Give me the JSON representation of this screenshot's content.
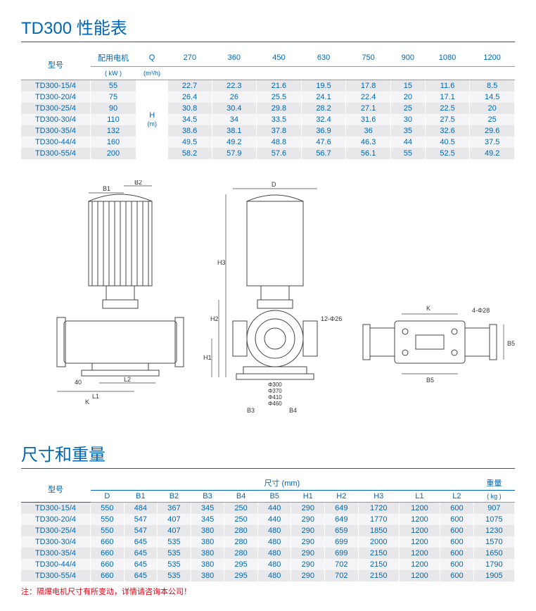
{
  "perf": {
    "title": "TD300 性能表",
    "headers": {
      "model": "型号",
      "motor": "配用电机",
      "motor_unit": "( kW )",
      "q": "Q",
      "q_unit": "(m³/h)",
      "h": "H",
      "h_unit": "(m)",
      "flows": [
        "270",
        "360",
        "450",
        "630",
        "750",
        "900",
        "1080",
        "1200"
      ]
    },
    "rows": [
      {
        "model": "TD300-15/4",
        "motor": "55",
        "vals": [
          "22.7",
          "22.3",
          "21.6",
          "19.5",
          "17.8",
          "15",
          "11.6",
          "8.5"
        ]
      },
      {
        "model": "TD300-20/4",
        "motor": "75",
        "vals": [
          "26.4",
          "26",
          "25.5",
          "24.1",
          "22.4",
          "20",
          "17.1",
          "14.5"
        ]
      },
      {
        "model": "TD300-25/4",
        "motor": "90",
        "vals": [
          "30.8",
          "30.4",
          "29.8",
          "28.2",
          "27.1",
          "25",
          "22.5",
          "20"
        ]
      },
      {
        "model": "TD300-30/4",
        "motor": "110",
        "vals": [
          "34.5",
          "34",
          "33.5",
          "32.4",
          "31.6",
          "30",
          "27.5",
          "25"
        ]
      },
      {
        "model": "TD300-35/4",
        "motor": "132",
        "vals": [
          "38.6",
          "38.1",
          "37.8",
          "36.9",
          "36",
          "35",
          "32.6",
          "29.6"
        ]
      },
      {
        "model": "TD300-44/4",
        "motor": "160",
        "vals": [
          "49.5",
          "49.2",
          "48.8",
          "47.6",
          "46.3",
          "44",
          "40.5",
          "37.5"
        ]
      },
      {
        "model": "TD300-55/4",
        "motor": "200",
        "vals": [
          "58.2",
          "57.9",
          "57.6",
          "56.7",
          "56.1",
          "55",
          "52.5",
          "49.2"
        ]
      }
    ]
  },
  "diagram": {
    "labels": {
      "B1": "B1",
      "B2": "B2",
      "D": "D",
      "H1": "H1",
      "H2": "H2",
      "H3": "H3",
      "L1": "L1",
      "L2": "L2",
      "K": "K",
      "B3": "B3",
      "B4": "B4",
      "B5": "B5",
      "forty": "40",
      "phi300": "Φ300",
      "phi370": "Φ370",
      "phi410": "Φ410",
      "phi460": "Φ460",
      "holes12": "12-Φ26",
      "holes4": "4-Φ28"
    },
    "stroke": "#444",
    "hatch": "#777"
  },
  "dims": {
    "title": "尺寸和重量",
    "headers": {
      "model": "型号",
      "dim": "尺寸 (mm)",
      "weight": "重量",
      "weight_unit": "( kg )",
      "cols": [
        "D",
        "B1",
        "B2",
        "B3",
        "B4",
        "B5",
        "H1",
        "H2",
        "H3",
        "L1",
        "L2"
      ]
    },
    "rows": [
      {
        "model": "TD300-15/4",
        "vals": [
          "550",
          "484",
          "367",
          "345",
          "250",
          "440",
          "290",
          "649",
          "1720",
          "1200",
          "600"
        ],
        "w": "907"
      },
      {
        "model": "TD300-20/4",
        "vals": [
          "550",
          "547",
          "407",
          "345",
          "250",
          "440",
          "290",
          "649",
          "1770",
          "1200",
          "600"
        ],
        "w": "1075"
      },
      {
        "model": "TD300-25/4",
        "vals": [
          "550",
          "547",
          "407",
          "380",
          "280",
          "480",
          "290",
          "659",
          "1850",
          "1200",
          "600"
        ],
        "w": "1230"
      },
      {
        "model": "TD300-30/4",
        "vals": [
          "660",
          "645",
          "535",
          "380",
          "280",
          "480",
          "290",
          "699",
          "2000",
          "1200",
          "600"
        ],
        "w": "1570"
      },
      {
        "model": "TD300-35/4",
        "vals": [
          "660",
          "645",
          "535",
          "380",
          "280",
          "480",
          "290",
          "699",
          "2150",
          "1200",
          "600"
        ],
        "w": "1650"
      },
      {
        "model": "TD300-44/4",
        "vals": [
          "660",
          "645",
          "535",
          "380",
          "295",
          "480",
          "290",
          "702",
          "2150",
          "1200",
          "600"
        ],
        "w": "1790"
      },
      {
        "model": "TD300-55/4",
        "vals": [
          "660",
          "645",
          "535",
          "380",
          "295",
          "480",
          "290",
          "702",
          "2150",
          "1200",
          "600"
        ],
        "w": "1905"
      }
    ],
    "footnote": "注：隔爆电机尺寸有所变动，详情请咨询本公司！"
  }
}
